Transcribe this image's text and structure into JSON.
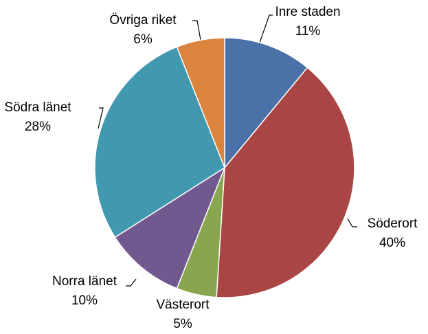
{
  "chart_data": {
    "type": "pie",
    "categories": [
      "Inre staden",
      "Söderort",
      "Västerort",
      "Norra länet",
      "Södra länet",
      "Övriga riket"
    ],
    "values": [
      11,
      40,
      5,
      10,
      28,
      6
    ],
    "value_labels": [
      "11%",
      "40%",
      "5%",
      "10%",
      "28%",
      "6%"
    ],
    "colors": [
      "#4a71a8",
      "#a94645",
      "#89a54e",
      "#71588f",
      "#4198af",
      "#db843d"
    ]
  }
}
